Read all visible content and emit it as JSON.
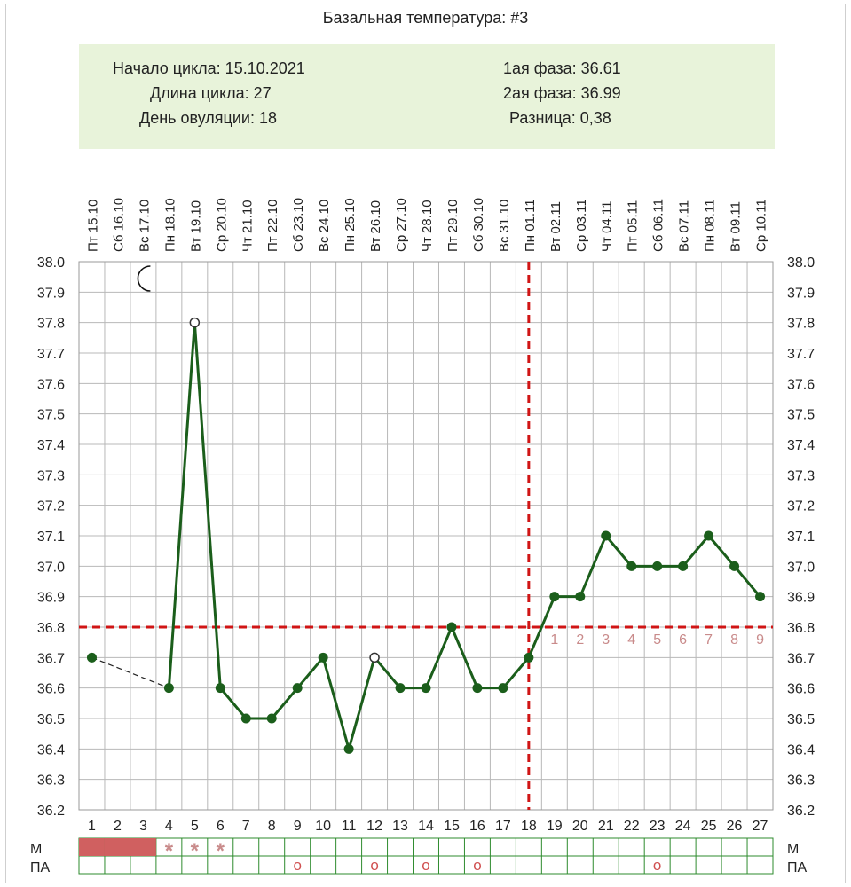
{
  "title": "Базальная температура: #3",
  "info": {
    "cycle_start": "Начало цикла: 15.10.2021",
    "cycle_length": "Длина цикла: 27",
    "ovulation_day": "День овуляции: 18",
    "phase1": "1ая фаза: 36.61",
    "phase2": "2ая фаза: 36.99",
    "difference": "Разница: 0,38"
  },
  "chart_data": {
    "type": "line",
    "title": "Базальная температура: #3",
    "x": [
      1,
      2,
      3,
      4,
      5,
      6,
      7,
      8,
      9,
      10,
      11,
      12,
      13,
      14,
      15,
      16,
      17,
      18,
      19,
      20,
      21,
      22,
      23,
      24,
      25,
      26,
      27
    ],
    "dates": [
      "Пт 15.10",
      "Сб 16.10",
      "Вс 17.10",
      "Пн 18.10",
      "Вт 19.10",
      "Ср 20.10",
      "Чт 21.10",
      "Пт 22.10",
      "Сб 23.10",
      "Вс 24.10",
      "Пн 25.10",
      "Вт 26.10",
      "Ср 27.10",
      "Чт 28.10",
      "Пт 29.10",
      "Сб 30.10",
      "Вс 31.10",
      "Пн 01.11",
      "Вт 02.11",
      "Ср 03.11",
      "Чт 04.11",
      "Пт 05.11",
      "Сб 06.11",
      "Вс 07.11",
      "Пн 08.11",
      "Вт 09.11",
      "Ср 10.11"
    ],
    "series": [
      {
        "values": [
          36.7,
          null,
          null,
          36.6,
          37.8,
          36.6,
          36.5,
          36.5,
          36.6,
          36.7,
          36.4,
          36.7,
          36.6,
          36.6,
          36.8,
          36.6,
          36.6,
          36.7,
          36.9,
          36.9,
          37.1,
          37.0,
          37.0,
          37.0,
          37.1,
          37.0,
          36.9
        ]
      }
    ],
    "open_marker_days": [
      5,
      12
    ],
    "gap_connector": [
      1,
      4
    ],
    "ylim": [
      36.2,
      38.0
    ],
    "y_ticks": [
      "38.0",
      "37.9",
      "37.8",
      "37.7",
      "37.6",
      "37.5",
      "37.4",
      "37.3",
      "37.2",
      "37.1",
      "37.0",
      "36.9",
      "36.8",
      "36.7",
      "36.6",
      "36.5",
      "36.4",
      "36.3",
      "36.2"
    ],
    "coverline": 36.8,
    "ovulation_marker_day": 18,
    "post_ovulation_labels": [
      "1",
      "2",
      "3",
      "4",
      "5",
      "6",
      "7",
      "8",
      "9"
    ],
    "post_ovulation_start_day": 19,
    "moon_icon_day": 3,
    "grid": true,
    "rows": {
      "m_label": "М",
      "pa_label": "ПА",
      "m_solid_days": [
        1,
        2,
        3
      ],
      "m_star_days": [
        4,
        5,
        6
      ],
      "m_star_glyph": "*",
      "pa_circle_days": [
        9,
        12,
        14,
        16,
        23
      ],
      "pa_circle_glyph": "о"
    },
    "colors": {
      "line": "#1b5e1b",
      "point": "#1b5e1b",
      "grid": "#b8b8b8",
      "coverline": "#d01515",
      "post_labels": "#c98b8b",
      "m_fill": "#d06060",
      "row_border": "#2e8b2e",
      "panel_bg": "#e8f3da"
    }
  }
}
